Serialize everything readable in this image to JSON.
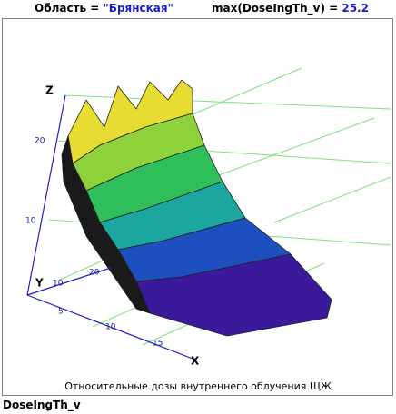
{
  "header": {
    "region_label": "Область = ",
    "region_value": "\"Брянская\"",
    "max_label": "max(DoseIngTh_v) = ",
    "max_value": 25.2
  },
  "plot": {
    "z_label": "Z",
    "y_label": "Y",
    "x_label": "X",
    "z_ticks": [
      20,
      10
    ],
    "y_ticks": [
      20,
      10
    ],
    "x_ticks": [
      5,
      10,
      15
    ],
    "caption": "Относительные дозы внутреннего облучения ЩЖ"
  },
  "footer": {
    "variable": "DoseIngTh_v"
  }
}
